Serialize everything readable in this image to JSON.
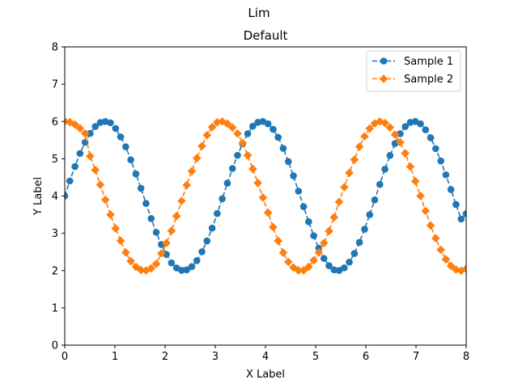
{
  "chart_data": {
    "type": "line",
    "suptitle": "Lim",
    "title": "Default",
    "xlabel": "X Label",
    "ylabel": "Y Label",
    "xlim": [
      0,
      8
    ],
    "ylim": [
      0,
      8
    ],
    "xticks": [
      "0",
      "1",
      "2",
      "3",
      "4",
      "5",
      "6",
      "7",
      "8"
    ],
    "yticks": [
      "0",
      "1",
      "2",
      "3",
      "4",
      "5",
      "6",
      "7",
      "8"
    ],
    "grid": false,
    "legend_position": "top-right",
    "series": [
      {
        "name": "Sample 1",
        "color": "#1f77b4",
        "marker": "circle",
        "linestyle": "dashed",
        "x": [
          0.0,
          0.101,
          0.203,
          0.304,
          0.405,
          0.506,
          0.608,
          0.709,
          0.81,
          0.911,
          1.013,
          1.114,
          1.215,
          1.316,
          1.418,
          1.519,
          1.62,
          1.722,
          1.823,
          1.924,
          2.025,
          2.127,
          2.228,
          2.329,
          2.43,
          2.532,
          2.633,
          2.734,
          2.835,
          2.937,
          3.038,
          3.139,
          3.241,
          3.342,
          3.443,
          3.544,
          3.646,
          3.747,
          3.848,
          3.949,
          4.051,
          4.152,
          4.253,
          4.354,
          4.456,
          4.557,
          4.658,
          4.759,
          4.861,
          4.962,
          5.063,
          5.165,
          5.266,
          5.367,
          5.468,
          5.57,
          5.671,
          5.772,
          5.873,
          5.975,
          6.076,
          6.177,
          6.278,
          6.38,
          6.481,
          6.582,
          6.684,
          6.785,
          6.886,
          6.987,
          7.089,
          7.19,
          7.291,
          7.392,
          7.494,
          7.595,
          7.696,
          7.797,
          7.899,
          8.0
        ],
        "y": [
          4.0,
          4.404,
          4.79,
          5.141,
          5.441,
          5.678,
          5.863,
          5.972,
          5.999,
          5.965,
          5.811,
          5.585,
          5.322,
          4.97,
          4.592,
          4.208,
          3.8,
          3.397,
          3.027,
          2.7,
          2.434,
          2.207,
          2.07,
          2.007,
          2.021,
          2.106,
          2.268,
          2.506,
          2.795,
          3.139,
          3.529,
          3.928,
          4.345,
          4.738,
          5.092,
          5.4,
          5.672,
          5.872,
          5.976,
          6.0,
          5.936,
          5.79,
          5.573,
          5.278,
          4.923,
          4.541,
          4.131,
          3.715,
          3.311,
          2.935,
          2.601,
          2.325,
          2.131,
          2.021,
          2.003,
          2.073,
          2.227,
          2.459,
          2.757,
          3.11,
          3.5,
          3.896,
          4.311,
          4.72,
          5.088,
          5.407,
          5.67,
          5.862,
          5.974,
          5.998,
          5.937,
          5.776,
          5.562,
          5.271,
          4.94,
          4.569,
          4.173,
          3.773,
          3.384,
          3.525
        ]
      },
      {
        "name": "Sample 2",
        "color": "#ff7f0e",
        "marker": "diamond",
        "linestyle": "dashed",
        "x": [
          0.0,
          0.101,
          0.203,
          0.304,
          0.405,
          0.506,
          0.608,
          0.709,
          0.81,
          0.911,
          1.013,
          1.114,
          1.215,
          1.316,
          1.418,
          1.519,
          1.62,
          1.722,
          1.823,
          1.924,
          2.025,
          2.127,
          2.228,
          2.329,
          2.43,
          2.532,
          2.633,
          2.734,
          2.835,
          2.937,
          3.038,
          3.139,
          3.241,
          3.342,
          3.443,
          3.544,
          3.646,
          3.747,
          3.848,
          3.949,
          4.051,
          4.152,
          4.253,
          4.354,
          4.456,
          4.557,
          4.658,
          4.759,
          4.861,
          4.962,
          5.063,
          5.165,
          5.266,
          5.367,
          5.468,
          5.57,
          5.671,
          5.772,
          5.873,
          5.975,
          6.076,
          6.177,
          6.278,
          6.38,
          6.481,
          6.582,
          6.684,
          6.785,
          6.886,
          6.987,
          7.089,
          7.19,
          7.291,
          7.392,
          7.494,
          7.595,
          7.696,
          7.797,
          7.899,
          8.0
        ],
        "y": [
          6.0,
          5.98,
          5.918,
          5.817,
          5.679,
          5.07,
          4.7,
          4.3,
          3.9,
          3.5,
          3.13,
          2.8,
          2.487,
          2.254,
          2.102,
          2.015,
          2.004,
          2.058,
          2.18,
          2.461,
          2.738,
          3.066,
          3.462,
          3.869,
          4.289,
          4.666,
          5.016,
          5.339,
          5.632,
          5.847,
          5.977,
          6.0,
          5.94,
          5.837,
          5.677,
          5.421,
          5.091,
          4.726,
          4.351,
          3.957,
          3.553,
          3.165,
          2.797,
          2.479,
          2.233,
          2.084,
          2.003,
          2.006,
          2.101,
          2.275,
          2.485,
          2.739,
          3.059,
          3.428,
          3.844,
          4.238,
          4.622,
          4.975,
          5.324,
          5.6,
          5.81,
          5.947,
          6.0,
          5.958,
          5.839,
          5.645,
          5.439,
          5.145,
          4.787,
          4.397,
          4.002,
          3.599,
          3.209,
          2.867,
          2.559,
          2.302,
          2.125,
          2.025,
          1.997,
          2.049
        ]
      }
    ]
  }
}
